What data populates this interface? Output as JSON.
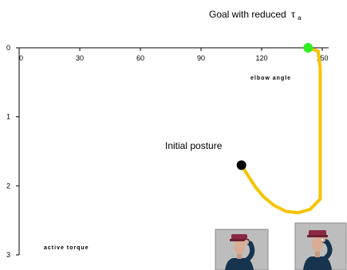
{
  "chart_data": {
    "type": "line",
    "title": "Goal with reduced",
    "title_symbol": "τ",
    "title_subscript": "a",
    "xlabel": "elbow angle",
    "ylabel": "active torque",
    "xlim": [
      0,
      150
    ],
    "ylim": [
      0,
      3
    ],
    "x_ticks": [
      0,
      30,
      60,
      90,
      120,
      150
    ],
    "y_ticks": [
      0,
      1,
      2,
      3
    ],
    "y_axis_inverted": true,
    "x_axis_position": "top",
    "grid": false,
    "legend": "none",
    "series": [
      {
        "color": "#f5c400",
        "points": [
          {
            "x": 110,
            "y": 1.7
          },
          {
            "x": 113,
            "y": 1.84
          },
          {
            "x": 117,
            "y": 2.02
          },
          {
            "x": 121,
            "y": 2.16
          },
          {
            "x": 126,
            "y": 2.28
          },
          {
            "x": 132,
            "y": 2.37
          },
          {
            "x": 138,
            "y": 2.39
          },
          {
            "x": 144,
            "y": 2.34
          },
          {
            "x": 149,
            "y": 2.19
          },
          {
            "x": 149,
            "y": 1.7
          },
          {
            "x": 149,
            "y": 1.2
          },
          {
            "x": 149,
            "y": 0.7
          },
          {
            "x": 149,
            "y": 0.3
          },
          {
            "x": 148,
            "y": 0.05
          },
          {
            "x": 143,
            "y": 0.0
          }
        ]
      }
    ],
    "markers": [
      {
        "name": "initial",
        "x": 110,
        "y": 1.7,
        "color": "#000000"
      },
      {
        "name": "goal",
        "x": 143,
        "y": 0.0,
        "color": "#33ee22"
      }
    ],
    "annotations": {
      "initial_label": "Initial posture"
    }
  }
}
